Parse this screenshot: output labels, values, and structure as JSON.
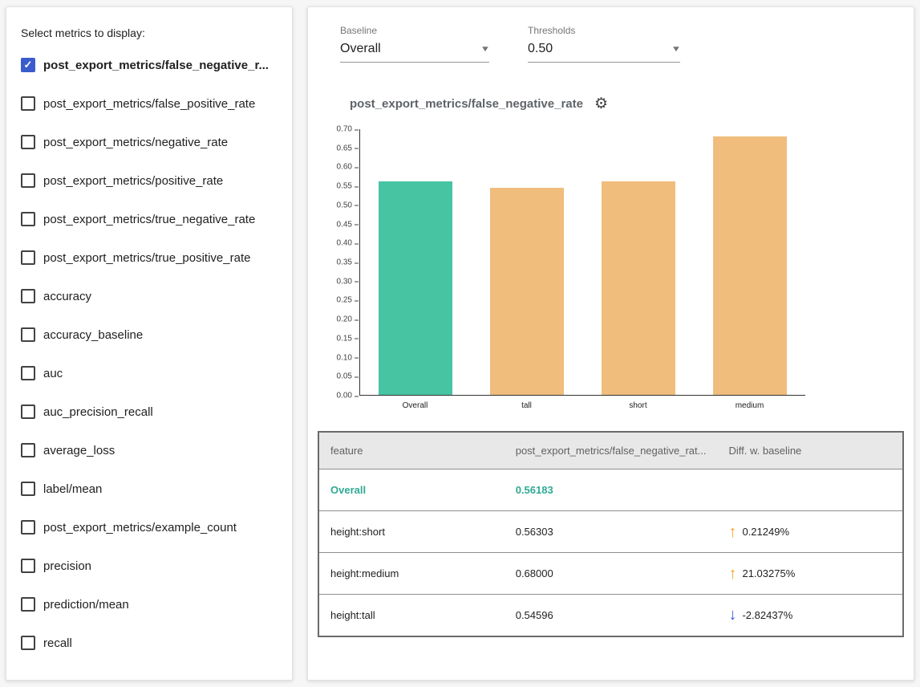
{
  "metricSelector": {
    "title": "Select metrics to display:",
    "items": [
      {
        "label": "post_export_metrics/false_negative_r...",
        "checked": true
      },
      {
        "label": "post_export_metrics/false_positive_rate",
        "checked": false
      },
      {
        "label": "post_export_metrics/negative_rate",
        "checked": false
      },
      {
        "label": "post_export_metrics/positive_rate",
        "checked": false
      },
      {
        "label": "post_export_metrics/true_negative_rate",
        "checked": false
      },
      {
        "label": "post_export_metrics/true_positive_rate",
        "checked": false
      },
      {
        "label": "accuracy",
        "checked": false
      },
      {
        "label": "accuracy_baseline",
        "checked": false
      },
      {
        "label": "auc",
        "checked": false
      },
      {
        "label": "auc_precision_recall",
        "checked": false
      },
      {
        "label": "average_loss",
        "checked": false
      },
      {
        "label": "label/mean",
        "checked": false
      },
      {
        "label": "post_export_metrics/example_count",
        "checked": false
      },
      {
        "label": "precision",
        "checked": false
      },
      {
        "label": "prediction/mean",
        "checked": false
      },
      {
        "label": "recall",
        "checked": false
      }
    ]
  },
  "controls": {
    "baseline": {
      "label": "Baseline",
      "value": "Overall"
    },
    "thresholds": {
      "label": "Thresholds",
      "value": "0.50"
    }
  },
  "chart_data": {
    "type": "bar",
    "title": "post_export_metrics/false_negative_rate",
    "categories": [
      "Overall",
      "tall",
      "short",
      "medium"
    ],
    "values": [
      0.56183,
      0.54596,
      0.56303,
      0.68
    ],
    "ylim": [
      0,
      0.7
    ],
    "ytick_step": 0.05,
    "bar_colors": [
      "#47c4a2",
      "#f0bd7d",
      "#f0bd7d",
      "#f0bd7d"
    ],
    "grid": false,
    "legend": "none",
    "xlabel": "",
    "ylabel": ""
  },
  "table": {
    "headers": [
      "feature",
      "post_export_metrics/false_negative_rat...",
      "Diff. w. baseline"
    ],
    "rows": [
      {
        "feature": "Overall",
        "value": "0.56183",
        "diff": "",
        "direction": "none"
      },
      {
        "feature": "height:short",
        "value": "0.56303",
        "diff": "0.21249%",
        "direction": "up"
      },
      {
        "feature": "height:medium",
        "value": "0.68000",
        "diff": "21.03275%",
        "direction": "up"
      },
      {
        "feature": "height:tall",
        "value": "0.54596",
        "diff": "-2.82437%",
        "direction": "down"
      }
    ]
  },
  "icons": {
    "check": "✓",
    "gear": "⚙",
    "dropdown_arrow": "▼",
    "up_arrow": "↑",
    "down_arrow": "↓"
  },
  "colors": {
    "teal": "#2faa93",
    "bar-teal": "#47c4a2",
    "bar-orange": "#f0bd7d",
    "up-arrow-orange": "#f5a623",
    "down-arrow-blue": "#3d5cd6",
    "checkbox-blue": "#3a5ccc"
  }
}
